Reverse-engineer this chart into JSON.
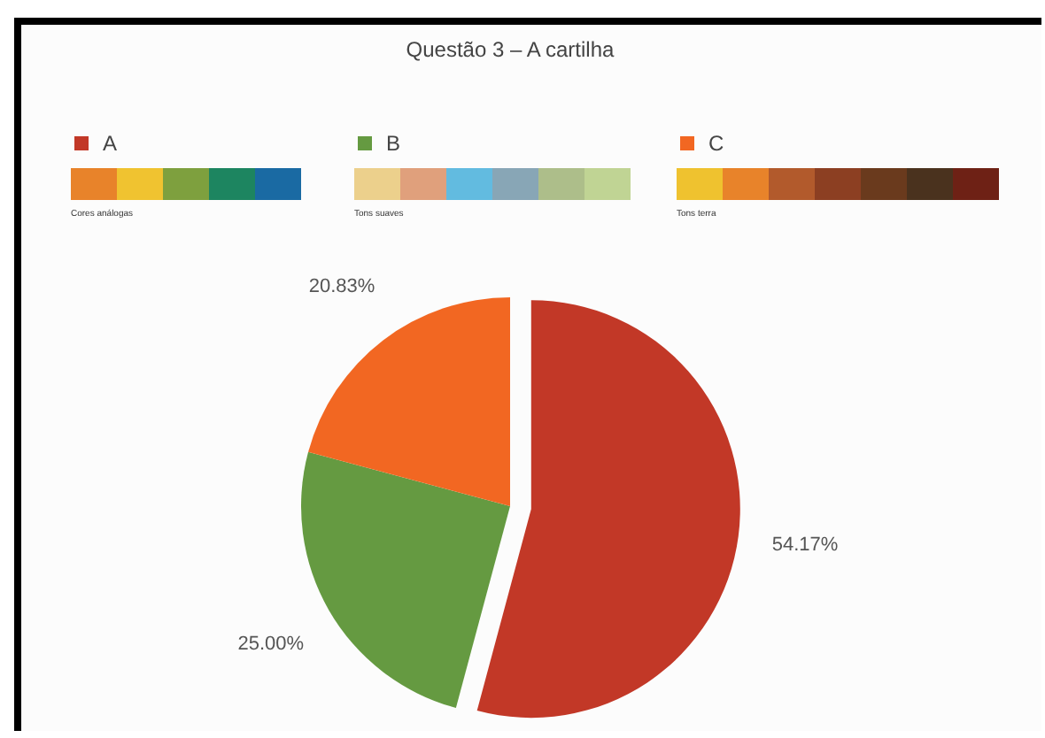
{
  "chart_data": {
    "type": "pie",
    "title": "Questão 3 – A cartilha",
    "categories": [
      "A",
      "B",
      "C"
    ],
    "values": [
      54.17,
      25.0,
      20.83
    ],
    "colors": [
      "#c23827",
      "#659a41",
      "#f26722"
    ],
    "value_labels": [
      "54.17%",
      "25.00%",
      "20.83%"
    ],
    "legend": "top",
    "annotations": [
      "Cores análogas",
      "Tons suaves",
      "Tons terra"
    ]
  }
}
